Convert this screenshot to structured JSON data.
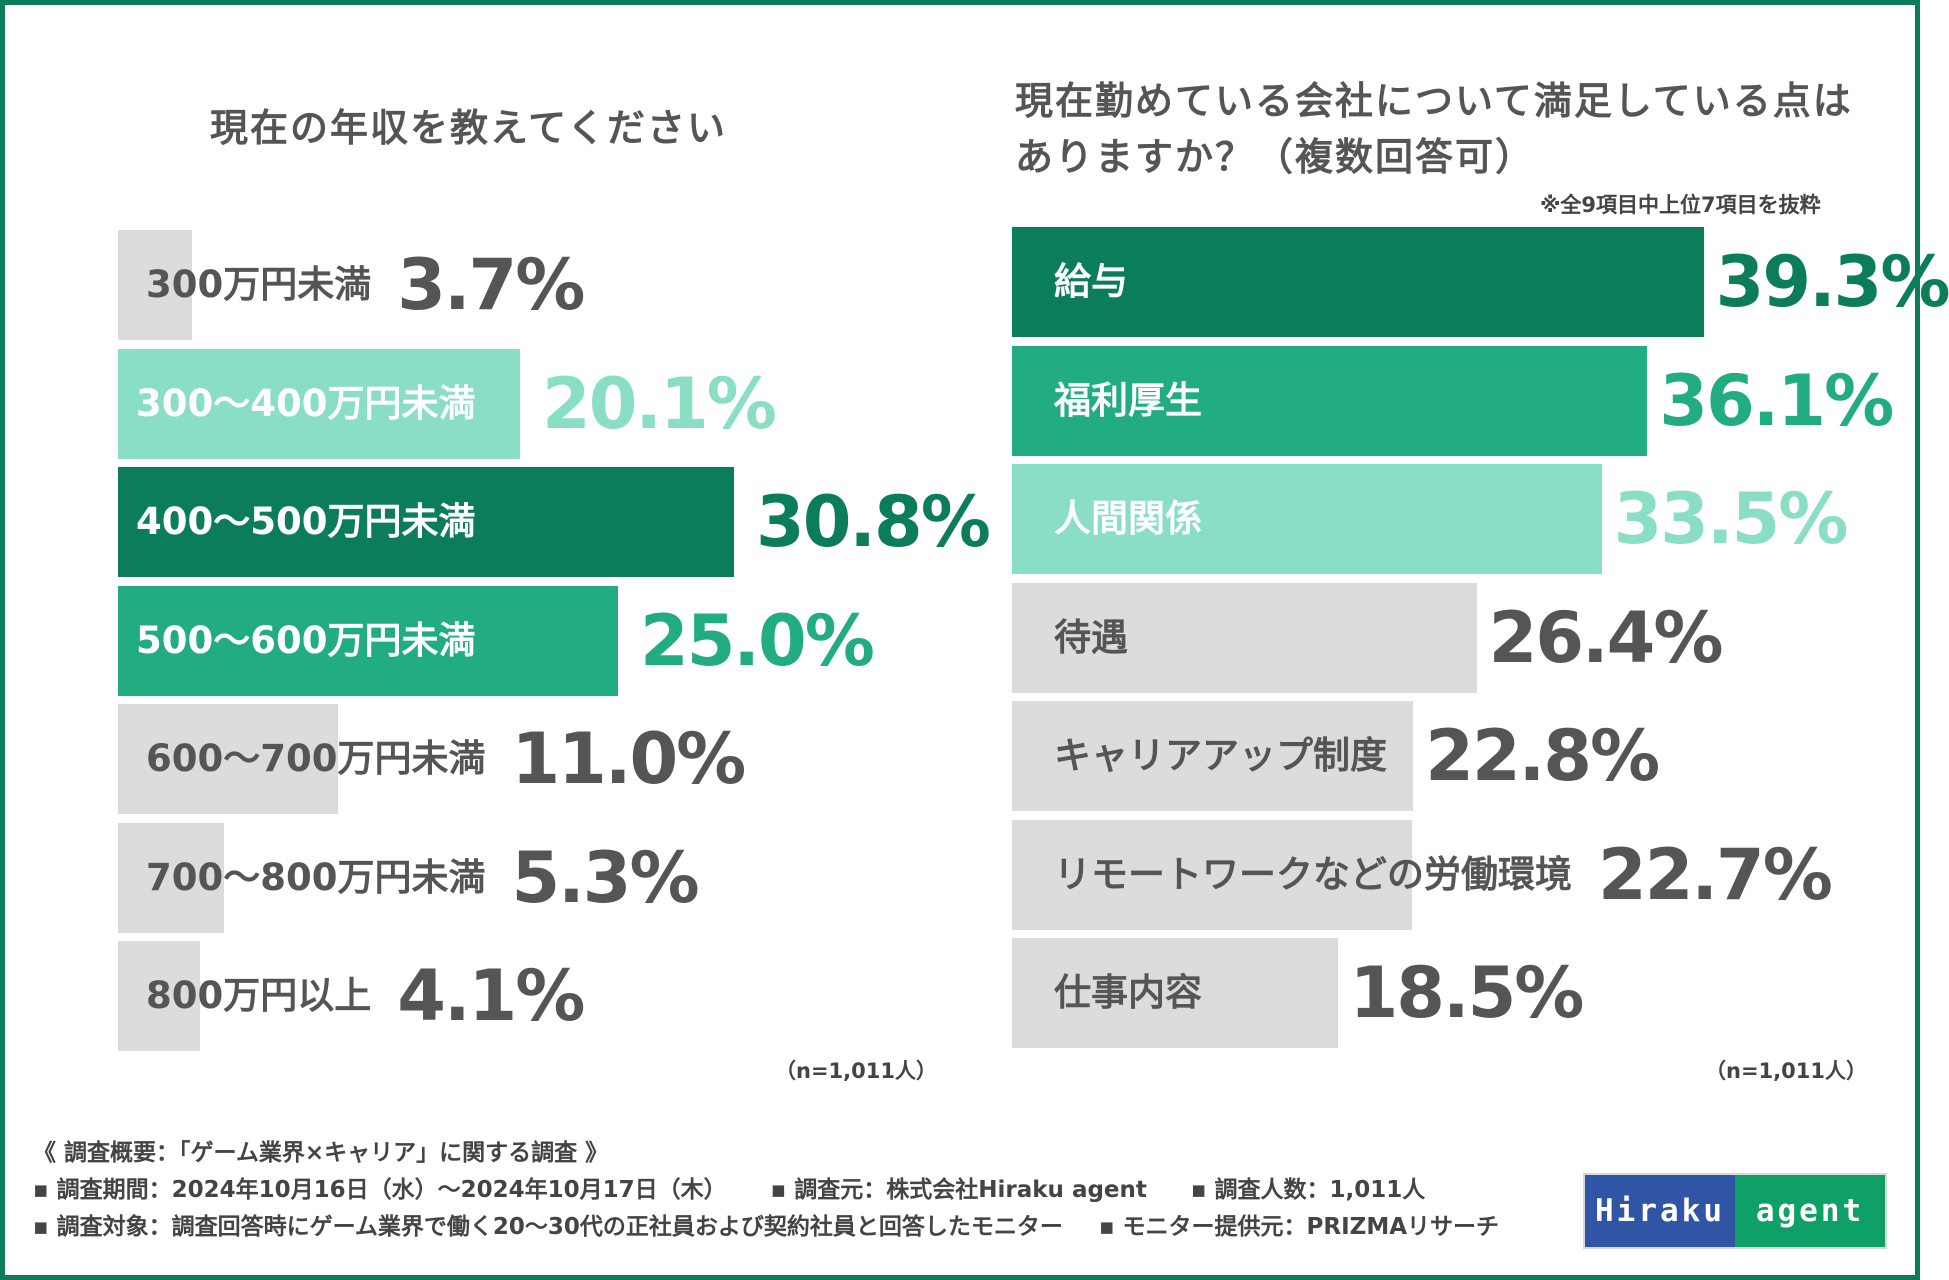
{
  "colors": {
    "dark_green": "#0b7d5a",
    "mid_green": "#21ac82",
    "light_green": "#8adec6",
    "gray": "#dcdcdc",
    "text_gray": "#555555",
    "white": "#ffffff"
  },
  "chart_data": [
    {
      "type": "bar",
      "orientation": "horizontal",
      "title": "現在の年収を教えてください",
      "categories": [
        "300万円未満",
        "300〜400万円未満",
        "400〜500万円未満",
        "500〜600万円未満",
        "600〜700万円未満",
        "700〜800万円未満",
        "800万円以上"
      ],
      "values": [
        3.7,
        20.1,
        30.8,
        25.0,
        11.0,
        5.3,
        4.1
      ],
      "value_labels": [
        "3.7%",
        "20.1%",
        "30.8%",
        "25.0%",
        "11.0%",
        "5.3%",
        "4.1%"
      ],
      "bar_colors": [
        "gray",
        "light_green",
        "dark_green",
        "mid_green",
        "gray",
        "gray",
        "gray"
      ],
      "unit": "%",
      "xlim": [
        0,
        100
      ],
      "n_label": "（n=1,011人）"
    },
    {
      "type": "bar",
      "orientation": "horizontal",
      "title": "現在勤めている会社について満足している点はありますか？（複数回答可）",
      "title_lines": [
        "現在勤めている会社について満足している点は",
        "ありますか？（複数回答可）"
      ],
      "note": "※全9項目中上位7項目を抜粋",
      "categories": [
        "給与",
        "福利厚生",
        "人間関係",
        "待遇",
        "キャリアアップ制度",
        "リモートワークなどの労働環境",
        "仕事内容"
      ],
      "values": [
        39.3,
        36.1,
        33.5,
        26.4,
        22.8,
        22.7,
        18.5
      ],
      "value_labels": [
        "39.3%",
        "36.1%",
        "33.5%",
        "26.4%",
        "22.8%",
        "22.7%",
        "18.5%"
      ],
      "bar_colors": [
        "dark_green",
        "mid_green",
        "light_green",
        "gray",
        "gray",
        "gray",
        "gray"
      ],
      "unit": "%",
      "xlim": [
        0,
        100
      ],
      "n_label": "（n=1,011人）"
    }
  ],
  "survey": {
    "title": "《 調査概要：「ゲーム業界×キャリア」に関する調査 》",
    "period": "▪ 調査期間：2024年10月16日（水）〜2024年10月17日（木）",
    "source": "▪ 調査元：株式会社Hiraku agent",
    "count": "▪ 調査人数：1,011人",
    "target": "▪ 調査対象：調査回答時にゲーム業界で働く20〜30代の正社員および契約社員と回答したモニター",
    "provider": "▪ モニター提供元：PRIZMAリサーチ"
  },
  "logo": {
    "part1": "Hiraku",
    "part2": "agent"
  }
}
